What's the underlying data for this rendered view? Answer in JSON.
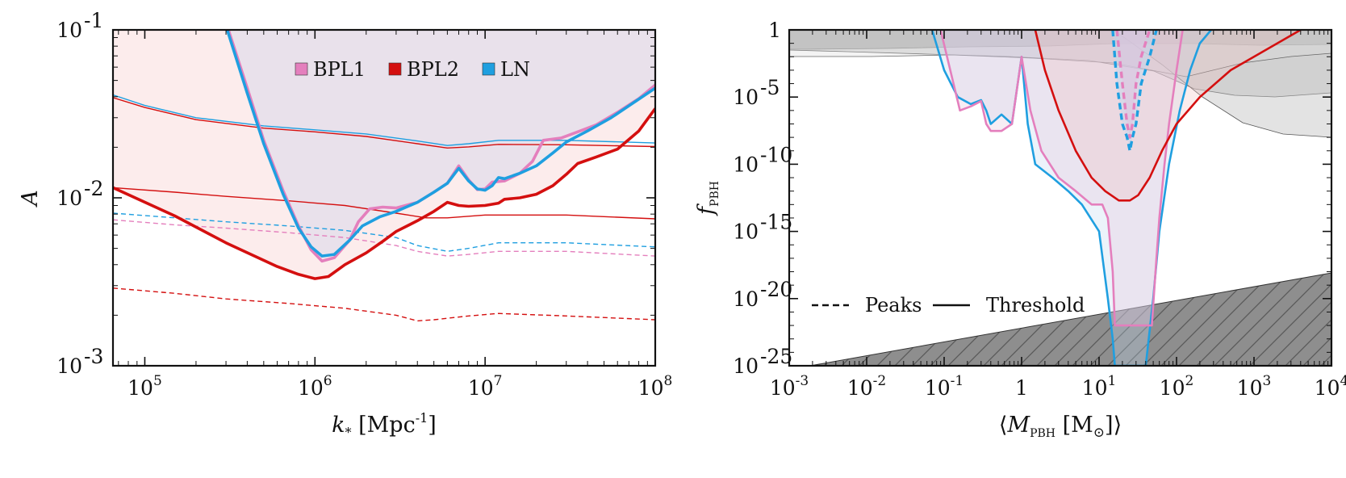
{
  "chart_data": [
    {
      "type": "line",
      "panel": "left",
      "title": "",
      "xlabel": "k_* [Mpc^-1]",
      "xlabel_main": "k",
      "xlabel_sub": "*",
      "xlabel_rest": " [Mpc",
      "xlabel_sup": "-1",
      "xlabel_end": "]",
      "ylabel": "A",
      "xscale": "log",
      "yscale": "log",
      "xlim": [
        65000,
        100000000
      ],
      "ylim": [
        0.001,
        0.1
      ],
      "xticks": [
        {
          "value": 100000,
          "base": "10",
          "exp": "5"
        },
        {
          "value": 1000000,
          "base": "10",
          "exp": "6"
        },
        {
          "value": 10000000,
          "base": "10",
          "exp": "7"
        },
        {
          "value": 100000000,
          "base": "10",
          "exp": "8"
        }
      ],
      "yticks": [
        {
          "value": 0.001,
          "base": "10",
          "exp": "-3"
        },
        {
          "value": 0.01,
          "base": "10",
          "exp": "-2"
        },
        {
          "value": 0.1,
          "base": "10",
          "exp": "-1"
        }
      ],
      "legend": {
        "placement": "top-center",
        "entries": [
          {
            "label": "BPL1",
            "color": "#e47fbd"
          },
          {
            "label": "BPL2",
            "color": "#d40f0f"
          },
          {
            "label": "LN",
            "color": "#1f9fe0"
          }
        ]
      },
      "series": [
        {
          "name": "BPL1",
          "style": "thick",
          "color": "#e47fbd",
          "x": [
            310000,
            400000,
            500000,
            650000,
            800000,
            950000,
            1100000,
            1300000,
            1600000,
            1800000,
            2100000,
            2500000,
            3000000,
            4000000,
            5000000,
            6000000,
            7000000,
            8000000,
            9000000,
            10000000,
            11000000,
            13000000,
            16000000,
            19000000,
            22000000,
            28000000,
            35000000,
            45000000,
            60000000,
            80000000,
            100000000
          ],
          "y": [
            0.1,
            0.045,
            0.022,
            0.011,
            0.0068,
            0.0049,
            0.0042,
            0.0044,
            0.0056,
            0.0072,
            0.0086,
            0.0088,
            0.0087,
            0.0094,
            0.0108,
            0.0122,
            0.0155,
            0.0128,
            0.0112,
            0.0113,
            0.0124,
            0.0126,
            0.014,
            0.0165,
            0.022,
            0.0227,
            0.0247,
            0.0272,
            0.0323,
            0.039,
            0.047
          ]
        },
        {
          "name": "BPL2",
          "style": "thick",
          "color": "#d40f0f",
          "x": [
            65000,
            150000,
            300000,
            600000,
            800000,
            1000000,
            1200000,
            1500000,
            2000000,
            2500000,
            3000000,
            4000000,
            5000000,
            6000000,
            7000000,
            8000000,
            10000000,
            12000000,
            13000000,
            16000000,
            20000000,
            25000000,
            30000000,
            35000000,
            45000000,
            60000000,
            80000000,
            100000000
          ],
          "y": [
            0.0115,
            0.0078,
            0.0054,
            0.0039,
            0.0035,
            0.0033,
            0.0034,
            0.004,
            0.0047,
            0.0055,
            0.0063,
            0.0073,
            0.0083,
            0.0094,
            0.009,
            0.0089,
            0.009,
            0.0093,
            0.0098,
            0.01,
            0.0105,
            0.0118,
            0.0138,
            0.016,
            0.0175,
            0.0195,
            0.025,
            0.034
          ]
        },
        {
          "name": "LN",
          "style": "thick",
          "color": "#1f9fe0",
          "x": [
            305000,
            400000,
            500000,
            650000,
            800000,
            950000,
            1100000,
            1300000,
            1600000,
            1900000,
            2400000,
            3000000,
            4000000,
            5000000,
            6000000,
            7000000,
            8000000,
            9000000,
            10000000,
            11000000,
            12000000,
            13000000,
            16000000,
            20000000,
            25000000,
            30000000,
            40000000,
            55000000,
            75000000,
            100000000
          ],
          "y": [
            0.1,
            0.042,
            0.021,
            0.0105,
            0.0066,
            0.0051,
            0.0045,
            0.0046,
            0.0056,
            0.0068,
            0.0077,
            0.0083,
            0.0094,
            0.0108,
            0.0122,
            0.015,
            0.0126,
            0.0113,
            0.0111,
            0.0118,
            0.0132,
            0.013,
            0.014,
            0.0155,
            0.0185,
            0.0215,
            0.025,
            0.03,
            0.037,
            0.045
          ]
        },
        {
          "name": "BPL1",
          "style": "thin",
          "color": "#e47fbd",
          "x": [
            310000,
            400000,
            500000,
            650000,
            800000,
            950000,
            1100000,
            1300000,
            1600000,
            1800000,
            2100000,
            2500000,
            3000000,
            4000000,
            5000000,
            6000000,
            7000000,
            8000000,
            9000000,
            10000000,
            11000000,
            13000000,
            16000000,
            19000000,
            22000000,
            28000000,
            35000000,
            45000000,
            60000000,
            80000000,
            100000000
          ],
          "y": [
            0.1,
            0.045,
            0.022,
            0.011,
            0.0068,
            0.0049,
            0.0042,
            0.0044,
            0.0056,
            0.0072,
            0.0086,
            0.0088,
            0.0087,
            0.0094,
            0.0108,
            0.0122,
            0.0155,
            0.0128,
            0.0112,
            0.0113,
            0.0124,
            0.0126,
            0.014,
            0.0165,
            0.022,
            0.0227,
            0.0247,
            0.0272,
            0.0323,
            0.039,
            0.047
          ]
        },
        {
          "name": "LN",
          "style": "thin",
          "color": "#1f9fe0",
          "x": [
            65000,
            100000,
            200000,
            500000,
            1000000,
            2000000,
            4000000,
            6000000,
            8000000,
            12000000,
            30000000,
            100000000
          ],
          "y": [
            0.041,
            0.0355,
            0.03,
            0.0268,
            0.0254,
            0.024,
            0.0218,
            0.0205,
            0.021,
            0.022,
            0.022,
            0.0212
          ]
        },
        {
          "name": "BPL2",
          "style": "thin",
          "color": "#d40f0f",
          "x": [
            65000,
            100000,
            200000,
            500000,
            1000000,
            2000000,
            4000000,
            6000000,
            8000000,
            12000000,
            30000000,
            100000000
          ],
          "y": [
            0.0395,
            0.0345,
            0.0292,
            0.026,
            0.0247,
            0.0232,
            0.021,
            0.0198,
            0.0201,
            0.0208,
            0.0207,
            0.0202
          ]
        },
        {
          "name": "BPL2",
          "style": "thin",
          "color": "#d40f0f",
          "x": [
            65000,
            150000,
            300000,
            700000,
            1500000,
            3000000,
            4500000,
            6000000,
            10000000,
            30000000,
            100000000
          ],
          "y": [
            0.0115,
            0.0108,
            0.0102,
            0.0096,
            0.009,
            0.0081,
            0.0076,
            0.0076,
            0.0079,
            0.0079,
            0.0075
          ]
        },
        {
          "name": "LN",
          "style": "dashed",
          "color": "#1f9fe0",
          "x": [
            65000,
            150000,
            300000,
            700000,
            1500000,
            3000000,
            4000000,
            6000000,
            8000000,
            12000000,
            30000000,
            100000000
          ],
          "y": [
            0.0081,
            0.0076,
            0.0072,
            0.0068,
            0.0064,
            0.0058,
            0.0052,
            0.0048,
            0.005,
            0.0054,
            0.0054,
            0.0051
          ]
        },
        {
          "name": "BPL1",
          "style": "dashed",
          "color": "#e47fbd",
          "x": [
            65000,
            150000,
            300000,
            700000,
            1500000,
            3000000,
            4000000,
            6000000,
            8000000,
            12000000,
            30000000,
            100000000
          ],
          "y": [
            0.0074,
            0.0069,
            0.0066,
            0.0062,
            0.0058,
            0.0052,
            0.0048,
            0.0045,
            0.0046,
            0.0048,
            0.0048,
            0.0045
          ]
        },
        {
          "name": "BPL2",
          "style": "dashed",
          "color": "#d40f0f",
          "x": [
            65000,
            150000,
            300000,
            700000,
            1500000,
            3000000,
            4000000,
            5000000,
            8000000,
            12000000,
            30000000,
            100000000
          ],
          "y": [
            0.0029,
            0.0027,
            0.0025,
            0.00235,
            0.0022,
            0.002,
            0.00185,
            0.00188,
            0.00198,
            0.00205,
            0.00198,
            0.00188
          ]
        }
      ]
    },
    {
      "type": "line",
      "panel": "right",
      "title": "",
      "xlabel": "⟨M_PBH [M_⊙]⟩",
      "xlabel_open": "⟨",
      "xlabel_main": "M",
      "xlabel_sub": "PBH",
      "xlabel_mid": " [M",
      "xlabel_sub2": "⊙",
      "xlabel_end": "]⟩",
      "ylabel": "f_PBH",
      "ylabel_main": "f",
      "ylabel_sub": "PBH",
      "xscale": "log",
      "yscale": "log",
      "xlim": [
        0.001,
        10000
      ],
      "ylim": [
        1e-25,
        1
      ],
      "xticks": [
        {
          "value": 0.001,
          "base": "10",
          "exp": "-3"
        },
        {
          "value": 0.01,
          "base": "10",
          "exp": "-2"
        },
        {
          "value": 0.1,
          "base": "10",
          "exp": "-1"
        },
        {
          "value": 1,
          "base": "1",
          "exp": ""
        },
        {
          "value": 10,
          "base": "10",
          "exp": "1"
        },
        {
          "value": 100,
          "base": "10",
          "exp": "2"
        },
        {
          "value": 1000,
          "base": "10",
          "exp": "3"
        },
        {
          "value": 10000,
          "base": "10",
          "exp": "4"
        }
      ],
      "yticks": [
        {
          "value": 1e-25,
          "base": "10",
          "exp": "-25"
        },
        {
          "value": 1e-20,
          "base": "10",
          "exp": "-20"
        },
        {
          "value": 1e-15,
          "base": "10",
          "exp": "-15"
        },
        {
          "value": 1e-10,
          "base": "10",
          "exp": "-10"
        },
        {
          "value": 1e-05,
          "base": "10",
          "exp": "-5"
        },
        {
          "value": 1,
          "base": "1",
          "exp": ""
        }
      ],
      "legend": {
        "placement": "lower-left",
        "entries": [
          {
            "label": "Peaks",
            "style": "dashed"
          },
          {
            "label": "Threshold",
            "style": "solid"
          }
        ]
      },
      "series": [
        {
          "name": "LN",
          "style": "solid",
          "color": "#1f9fe0",
          "x": [
            0.07,
            0.1,
            0.15,
            0.22,
            0.3,
            0.35,
            0.4,
            0.55,
            0.75,
            1.0,
            1.2,
            1.5,
            2.5,
            4,
            6,
            10,
            13,
            15,
            16,
            40,
            50,
            60,
            80,
            110,
            150,
            200,
            280
          ],
          "y": [
            1,
            0.001,
            1e-05,
            3e-06,
            6e-06,
            1e-06,
            1e-07,
            5e-07,
            1e-07,
            0.01,
            1e-07,
            1e-10,
            1e-11,
            1e-12,
            1e-13,
            1e-15,
            1e-20,
            1e-23,
            1e-25,
            1e-25,
            1e-20,
            1e-15,
            1e-10,
            1e-06,
            0.001,
            0.1,
            1
          ]
        },
        {
          "name": "BPL1",
          "style": "solid",
          "color": "#e47fbd",
          "x": [
            0.09,
            0.12,
            0.16,
            0.22,
            0.3,
            0.35,
            0.4,
            0.55,
            0.75,
            1.0,
            1.3,
            1.8,
            3,
            5,
            8,
            11,
            13,
            15,
            16,
            48,
            55,
            60,
            70,
            80,
            100,
            120
          ],
          "y": [
            1,
            0.001,
            1e-06,
            2e-06,
            5e-06,
            1e-07,
            3e-08,
            3e-08,
            1e-07,
            0.01,
            1e-06,
            1e-09,
            1e-11,
            1e-12,
            1e-13,
            1e-13,
            1e-14,
            1e-18,
            1e-22,
            1e-22,
            1e-17,
            1e-14,
            1e-10,
            1e-07,
            0.001,
            1
          ]
        },
        {
          "name": "BPL2",
          "style": "solid",
          "color": "#d40f0f",
          "x": [
            1.5,
            2,
            3,
            5,
            8,
            12,
            18,
            25,
            32,
            45,
            65,
            100,
            200,
            500,
            1000,
            2000,
            4000,
            8000
          ],
          "y": [
            1,
            0.001,
            1e-06,
            1e-09,
            1e-11,
            1e-12,
            2e-13,
            2e-13,
            5e-13,
            1e-11,
            1e-09,
            1e-07,
            1e-05,
            0.001,
            0.01,
            0.1,
            1,
            10
          ]
        },
        {
          "name": "LN",
          "style": "dashed",
          "color": "#1f9fe0",
          "x": [
            15,
            17,
            20,
            23,
            25,
            27,
            30,
            35,
            45,
            55
          ],
          "y": [
            1,
            0.0001,
            1e-07,
            1e-08,
            1e-09,
            1e-08,
            1e-07,
            0.0001,
            0.01,
            1
          ]
        },
        {
          "name": "BPL1",
          "style": "dashed",
          "color": "#e47fbd",
          "x": [
            17,
            20,
            23,
            25,
            27,
            30,
            35,
            45
          ],
          "y": [
            1,
            0.0001,
            1e-07,
            1e-08,
            1e-07,
            0.0001,
            0.01,
            1
          ]
        }
      ]
    }
  ]
}
